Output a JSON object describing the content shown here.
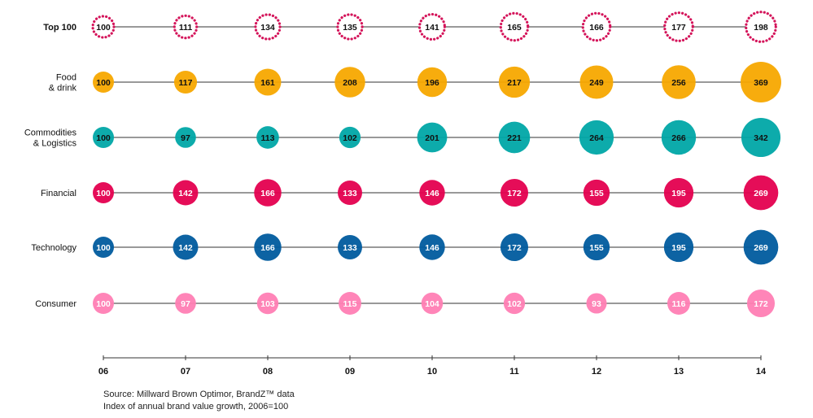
{
  "chart_data": {
    "type": "bubble",
    "categories": [
      "06",
      "07",
      "08",
      "09",
      "10",
      "11",
      "12",
      "13",
      "14"
    ],
    "series": [
      {
        "name": "Top 100",
        "color": "#d4145a",
        "style": "dotted-outline",
        "values": [
          100,
          111,
          134,
          135,
          141,
          165,
          166,
          177,
          198
        ],
        "labels": [
          "100",
          "111",
          "134",
          "135",
          "141",
          "165",
          "166",
          "177",
          "198"
        ]
      },
      {
        "name": "Food & drink",
        "color": "#f7a800",
        "values": [
          100,
          117,
          161,
          208,
          196,
          217,
          249,
          256,
          369
        ],
        "labels": [
          "100",
          "117",
          "161",
          "208",
          "196",
          "217",
          "249",
          "256",
          "369"
        ]
      },
      {
        "name": "Commodities & Logistics",
        "color": "#00a7a7",
        "values": [
          100,
          97,
          113,
          102,
          201,
          221,
          264,
          266,
          342
        ],
        "labels": [
          "100",
          "97",
          "113",
          "102",
          "201",
          "221",
          "264",
          "266",
          "342"
        ]
      },
      {
        "name": "Financial",
        "color": "#e4004f",
        "values": [
          100,
          142,
          166,
          133,
          146,
          172,
          155,
          195,
          269
        ],
        "labels": [
          "100",
          "142",
          "166",
          "133",
          "146",
          "172",
          "155",
          "195",
          "269"
        ]
      },
      {
        "name": "Technology",
        "color": "#005b9e",
        "values": [
          100,
          142,
          166,
          133,
          146,
          172,
          155,
          195,
          269
        ],
        "labels": [
          "100",
          "142",
          "166",
          "133",
          "146",
          "172",
          "155",
          "195",
          "269"
        ]
      },
      {
        "name": "Consumer",
        "color": "#ff7eb4",
        "values": [
          100,
          97,
          103,
          115,
          104,
          102,
          93,
          116,
          172
        ],
        "labels": [
          "100",
          "97",
          "103",
          "115",
          "104",
          "102",
          "93",
          "116",
          "172"
        ]
      }
    ],
    "row_labels": [
      [
        "Top 100"
      ],
      [
        "Food",
        "& drink"
      ],
      [
        "Commodities",
        "& Logistics"
      ],
      [
        "Financial"
      ],
      [
        "Technology"
      ],
      [
        "Consumer"
      ]
    ],
    "source": "Source: Millward Brown Optimor, BrandZ™ data",
    "note": "Index of annual brand value growth, 2006=100"
  }
}
